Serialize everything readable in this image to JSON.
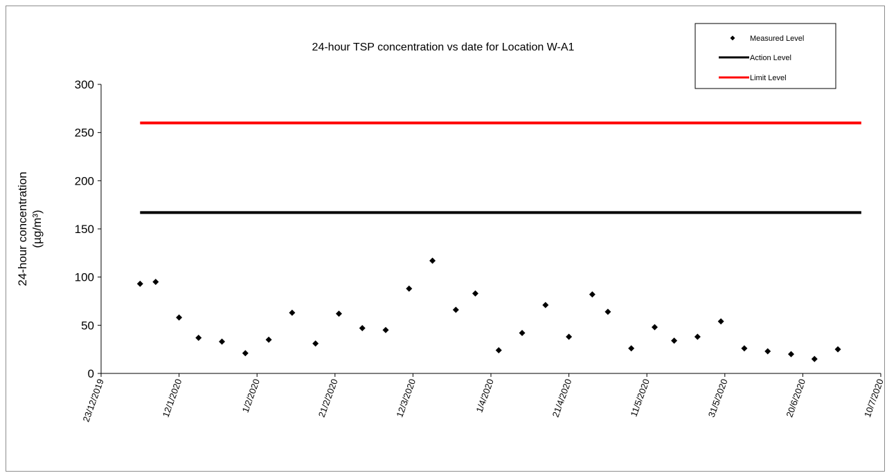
{
  "chart_data": {
    "type": "scatter",
    "title": "24-hour TSP concentration vs date for Location W-A1",
    "ylabel_line1": "24-hour concentration",
    "ylabel_line2": "(µg/m³)",
    "ylim": [
      0,
      300
    ],
    "yticks": [
      0,
      50,
      100,
      150,
      200,
      250,
      300
    ],
    "xlim": [
      "23/12/2019",
      "10/7/2020"
    ],
    "xticks": [
      "23/12/2019",
      "12/1/2020",
      "1/2/2020",
      "21/2/2020",
      "12/3/2020",
      "1/4/2020",
      "21/4/2020",
      "11/5/2020",
      "31/5/2020",
      "20/6/2020",
      "10/7/2020"
    ],
    "grid": false,
    "legend_position": "top-right",
    "series": [
      {
        "name": "Measured Level",
        "marker": "diamond",
        "color": "#000000",
        "points": [
          {
            "x": "2/1/2020",
            "y": 93
          },
          {
            "x": "6/1/2020",
            "y": 95
          },
          {
            "x": "12/1/2020",
            "y": 58
          },
          {
            "x": "17/1/2020",
            "y": 37
          },
          {
            "x": "23/1/2020",
            "y": 33
          },
          {
            "x": "29/1/2020",
            "y": 21
          },
          {
            "x": "4/2/2020",
            "y": 35
          },
          {
            "x": "10/2/2020",
            "y": 63
          },
          {
            "x": "16/2/2020",
            "y": 31
          },
          {
            "x": "22/2/2020",
            "y": 62
          },
          {
            "x": "28/2/2020",
            "y": 47
          },
          {
            "x": "5/3/2020",
            "y": 45
          },
          {
            "x": "11/3/2020",
            "y": 88
          },
          {
            "x": "17/3/2020",
            "y": 117
          },
          {
            "x": "23/3/2020",
            "y": 66
          },
          {
            "x": "28/3/2020",
            "y": 83
          },
          {
            "x": "3/4/2020",
            "y": 24
          },
          {
            "x": "9/4/2020",
            "y": 42
          },
          {
            "x": "15/4/2020",
            "y": 71
          },
          {
            "x": "21/4/2020",
            "y": 38
          },
          {
            "x": "27/4/2020",
            "y": 82
          },
          {
            "x": "1/5/2020",
            "y": 64
          },
          {
            "x": "7/5/2020",
            "y": 26
          },
          {
            "x": "13/5/2020",
            "y": 48
          },
          {
            "x": "18/5/2020",
            "y": 34
          },
          {
            "x": "24/5/2020",
            "y": 38
          },
          {
            "x": "30/5/2020",
            "y": 54
          },
          {
            "x": "5/6/2020",
            "y": 26
          },
          {
            "x": "11/6/2020",
            "y": 23
          },
          {
            "x": "17/6/2020",
            "y": 20
          },
          {
            "x": "23/6/2020",
            "y": 15
          },
          {
            "x": "29/6/2020",
            "y": 25
          }
        ]
      },
      {
        "name": "Action Level",
        "type": "line",
        "color": "#000000",
        "points": [
          {
            "x": "2/1/2020",
            "y": 167
          },
          {
            "x": "5/7/2020",
            "y": 167
          }
        ]
      },
      {
        "name": "Limit Level",
        "type": "line",
        "color": "#ff0000",
        "points": [
          {
            "x": "2/1/2020",
            "y": 260
          },
          {
            "x": "5/7/2020",
            "y": 260
          }
        ]
      }
    ]
  }
}
